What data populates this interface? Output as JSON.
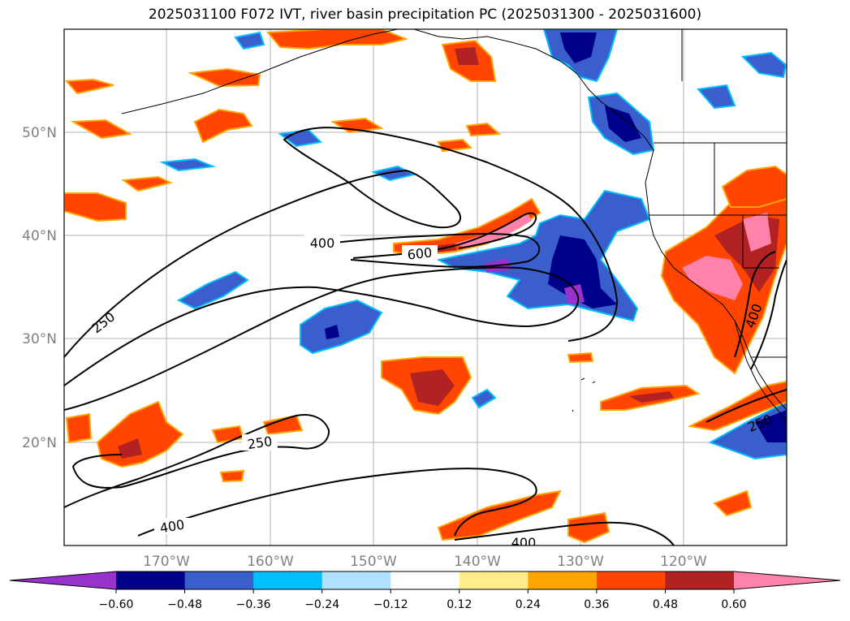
{
  "title": "2025031100 F072 IVT, river basin precipitation PC (2025031300 - 2025031600)",
  "lat_labels": [
    "50°N",
    "40°N",
    "30°N",
    "20°N"
  ],
  "lon_labels": [
    "170°W",
    "160°W",
    "150°W",
    "140°W",
    "130°W",
    "120°W"
  ],
  "contour_labels": [
    "250",
    "400",
    "600",
    "250",
    "400",
    "400",
    "250",
    "400"
  ],
  "colorbar": {
    "ticks": [
      "−0.60",
      "−0.48",
      "−0.36",
      "−0.24",
      "−0.12",
      "0.12",
      "0.24",
      "0.36",
      "0.48",
      "0.60"
    ],
    "colors": [
      "#9932cc",
      "#00008b",
      "#3a5fcd",
      "#00bfff",
      "#b0e2ff",
      "#ffffff",
      "#ffec8b",
      "#ffa500",
      "#ff4500",
      "#b22222",
      "#ff82ab"
    ]
  },
  "colors": {
    "strong_positive": "#b22222",
    "positive": "#ff4500",
    "weak_positive": "#ffa500",
    "pink": "#ff82ab",
    "strong_negative": "#00008b",
    "negative": "#3a5fcd",
    "weak_negative": "#00bfff"
  }
}
